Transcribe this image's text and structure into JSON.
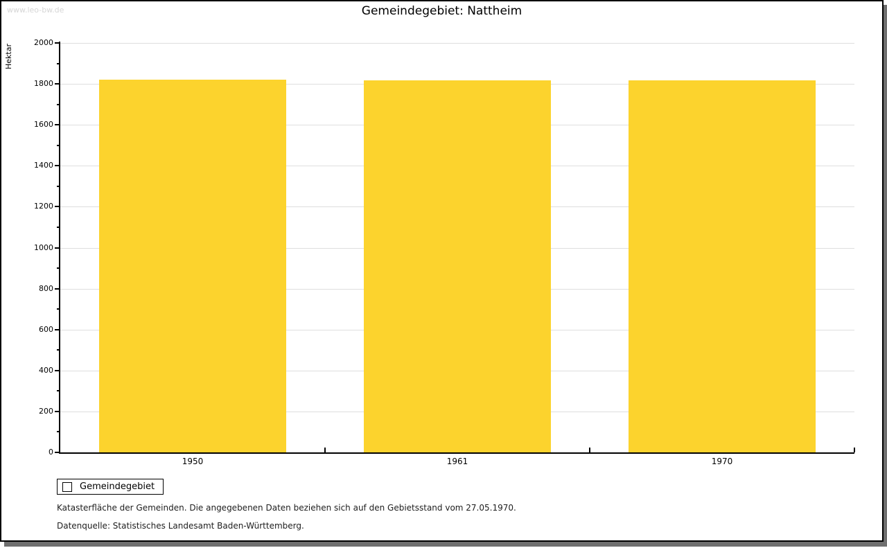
{
  "watermark": "www.leo-bw.de",
  "title": "Gemeindegebiet: Nattheim",
  "chart_data": {
    "type": "bar",
    "title": "Gemeindegebiet: Nattheim",
    "categories": [
      "1950",
      "1961",
      "1970"
    ],
    "series": [
      {
        "name": "Gemeindegebiet",
        "values": [
          1820,
          1818,
          1818
        ]
      }
    ],
    "xlabel": "",
    "ylabel": "Hektar",
    "ylim": [
      0,
      2000
    ],
    "ytick_step": 200,
    "ytick_minor_step": 100,
    "grid": true,
    "legend_position": "bottom-left",
    "bar_color": "#fcd32d"
  },
  "legend": {
    "items": [
      {
        "label": "Gemeindegebiet",
        "color": "#fcd32d"
      }
    ]
  },
  "footer": {
    "line1": "Katasterfläche der Gemeinden. Die angegebenen Daten beziehen sich auf den Gebietsstand vom 27.05.1970.",
    "line2": "Datenquelle: Statistisches Landesamt Baden-Württemberg."
  },
  "colors": {
    "bar": "#fcd32d",
    "gridline": "#dedede",
    "axis": "#000000",
    "watermark": "#d6d6d6",
    "frame_shadow": "#6f6f6f",
    "background": "#ffffff"
  }
}
